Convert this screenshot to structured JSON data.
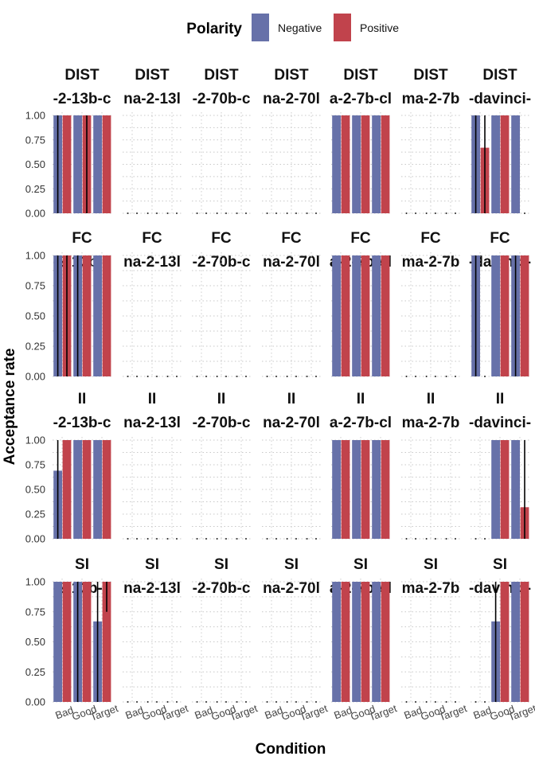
{
  "chart_data": {
    "type": "bar",
    "ylabel": "Acceptance rate",
    "xlabel": "Condition",
    "ylim": [
      0,
      1
    ],
    "y_ticks": [
      "0.00",
      "0.25",
      "0.50",
      "0.75",
      "1.00"
    ],
    "categories": [
      "Bad",
      "Good",
      "Target"
    ],
    "grid": true,
    "legend": {
      "title": "Polarity",
      "position": "top",
      "entries": [
        {
          "name": "Negative",
          "color": "#6771a9"
        },
        {
          "name": "Positive",
          "color": "#c1434c"
        }
      ]
    },
    "rows": [
      "DIST",
      "FC",
      "II",
      "SI"
    ],
    "model_labels": [
      "-2-13b-c",
      "na-2-13l",
      "-2-70b-c",
      "na-2-70l",
      "a-2-7b-cl",
      "ma-2-7b",
      "-davinci-"
    ],
    "series": [
      "Negative",
      "Positive"
    ],
    "panels": [
      [
        [
          [
            1,
            1
          ],
          [
            1,
            1
          ],
          [
            1,
            1
          ]
        ],
        [
          [
            0,
            0
          ],
          [
            0,
            0
          ],
          [
            0,
            0
          ]
        ],
        [
          [
            0,
            0
          ],
          [
            0,
            0
          ],
          [
            0,
            0
          ]
        ],
        [
          [
            0,
            0
          ],
          [
            0,
            0
          ],
          [
            0,
            0
          ]
        ],
        [
          [
            1,
            1
          ],
          [
            1,
            1
          ],
          [
            1,
            1
          ]
        ],
        [
          [
            0,
            0
          ],
          [
            0,
            0
          ],
          [
            0,
            0
          ]
        ],
        [
          [
            1,
            0.67
          ],
          [
            1,
            1
          ],
          [
            1,
            0
          ]
        ]
      ],
      [
        [
          [
            1,
            1
          ],
          [
            1,
            1
          ],
          [
            1,
            1
          ]
        ],
        [
          [
            0,
            0
          ],
          [
            0,
            0
          ],
          [
            0,
            0
          ]
        ],
        [
          [
            0,
            0
          ],
          [
            0,
            0
          ],
          [
            0,
            0
          ]
        ],
        [
          [
            0,
            0
          ],
          [
            0,
            0
          ],
          [
            0,
            0
          ]
        ],
        [
          [
            1,
            1
          ],
          [
            1,
            1
          ],
          [
            1,
            1
          ]
        ],
        [
          [
            0,
            0
          ],
          [
            0,
            0
          ],
          [
            0,
            0
          ]
        ],
        [
          [
            1,
            0
          ],
          [
            1,
            1
          ],
          [
            1,
            1
          ]
        ]
      ],
      [
        [
          [
            0.69,
            1
          ],
          [
            1,
            1
          ],
          [
            1,
            1
          ]
        ],
        [
          [
            0,
            0
          ],
          [
            0,
            0
          ],
          [
            0,
            0
          ]
        ],
        [
          [
            0,
            0
          ],
          [
            0,
            0
          ],
          [
            0,
            0
          ]
        ],
        [
          [
            0,
            0
          ],
          [
            0,
            0
          ],
          [
            0,
            0
          ]
        ],
        [
          [
            1,
            1
          ],
          [
            1,
            1
          ],
          [
            1,
            1
          ]
        ],
        [
          [
            0,
            0
          ],
          [
            0,
            0
          ],
          [
            0,
            0
          ]
        ],
        [
          [
            0,
            0
          ],
          [
            1,
            1
          ],
          [
            1,
            0.32
          ]
        ]
      ],
      [
        [
          [
            1,
            1
          ],
          [
            1,
            1
          ],
          [
            0.67,
            1
          ]
        ],
        [
          [
            0,
            0
          ],
          [
            0,
            0
          ],
          [
            0,
            0
          ]
        ],
        [
          [
            0,
            0
          ],
          [
            0,
            0
          ],
          [
            0,
            0
          ]
        ],
        [
          [
            0,
            0
          ],
          [
            0,
            0
          ],
          [
            0,
            0
          ]
        ],
        [
          [
            1,
            1
          ],
          [
            1,
            1
          ],
          [
            1,
            1
          ]
        ],
        [
          [
            0,
            0
          ],
          [
            0,
            0
          ],
          [
            0,
            0
          ]
        ],
        [
          [
            0,
            0
          ],
          [
            0.67,
            1
          ],
          [
            1,
            1
          ]
        ]
      ]
    ],
    "error_bars": [
      {
        "row": 0,
        "col": 0,
        "cat": 0,
        "series": 0,
        "low": 0,
        "high": 1
      },
      {
        "row": 0,
        "col": 0,
        "cat": 1,
        "series": 1,
        "low": 0,
        "high": 1
      },
      {
        "row": 0,
        "col": 6,
        "cat": 0,
        "series": 0,
        "low": 0,
        "high": 1
      },
      {
        "row": 0,
        "col": 6,
        "cat": 0,
        "series": 1,
        "low": 0,
        "high": 1
      },
      {
        "row": 1,
        "col": 0,
        "cat": 0,
        "series": 0,
        "low": 0,
        "high": 1
      },
      {
        "row": 1,
        "col": 0,
        "cat": 0,
        "series": 1,
        "low": 0,
        "high": 1
      },
      {
        "row": 1,
        "col": 0,
        "cat": 1,
        "series": 0,
        "low": 0,
        "high": 1
      },
      {
        "row": 1,
        "col": 6,
        "cat": 0,
        "series": 0,
        "low": 0,
        "high": 1
      },
      {
        "row": 1,
        "col": 6,
        "cat": 2,
        "series": 0,
        "low": 0,
        "high": 1
      },
      {
        "row": 2,
        "col": 0,
        "cat": 0,
        "series": 0,
        "low": 0,
        "high": 1
      },
      {
        "row": 2,
        "col": 6,
        "cat": 2,
        "series": 1,
        "low": 0,
        "high": 1
      },
      {
        "row": 3,
        "col": 0,
        "cat": 1,
        "series": 0,
        "low": 0,
        "high": 1
      },
      {
        "row": 3,
        "col": 0,
        "cat": 2,
        "series": 0,
        "low": 0,
        "high": 1
      },
      {
        "row": 3,
        "col": 0,
        "cat": 2,
        "series": 1,
        "low": 0.75,
        "high": 1
      },
      {
        "row": 3,
        "col": 6,
        "cat": 1,
        "series": 0,
        "low": 0,
        "high": 1
      }
    ]
  }
}
